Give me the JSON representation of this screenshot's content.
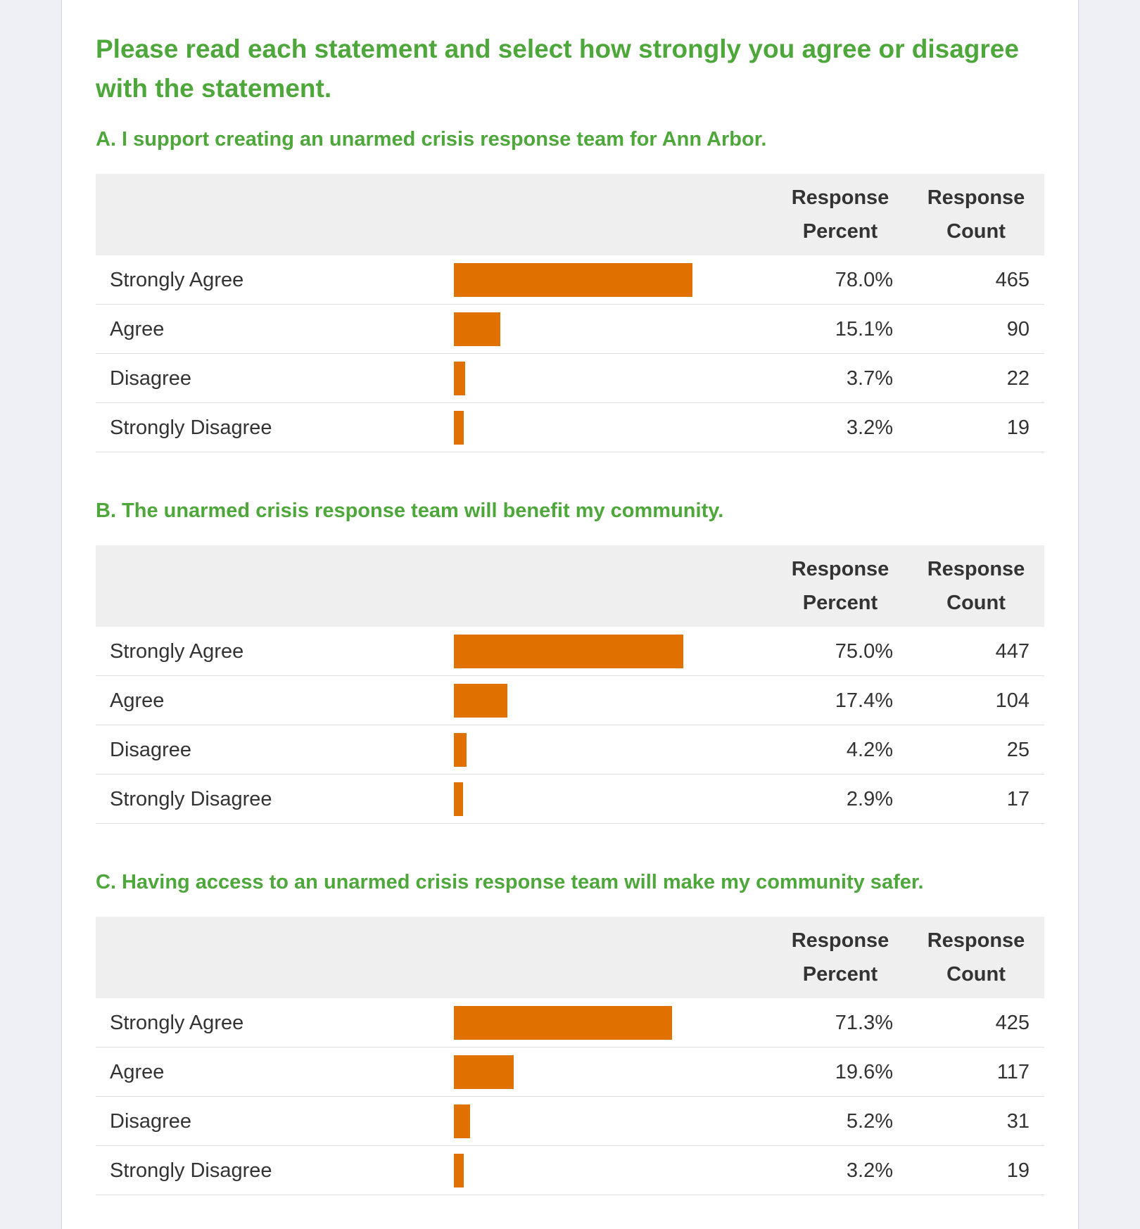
{
  "title": "Please read each statement and select how strongly you agree or disagree with the statement.",
  "sections": [
    {
      "heading": "A. I support creating an unarmed crisis response team for Ann Arbor.",
      "columns": [
        "Response Percent",
        "Response Count"
      ],
      "rows": [
        {
          "label": "Strongly Agree",
          "percent": 78.0,
          "percent_label": "78.0%",
          "count": 465
        },
        {
          "label": "Agree",
          "percent": 15.1,
          "percent_label": "15.1%",
          "count": 90
        },
        {
          "label": "Disagree",
          "percent": 3.7,
          "percent_label": "3.7%",
          "count": 22
        },
        {
          "label": "Strongly Disagree",
          "percent": 3.2,
          "percent_label": "3.2%",
          "count": 19
        }
      ]
    },
    {
      "heading": "B. The unarmed crisis response team will benefit my community.",
      "columns": [
        "Response Percent",
        "Response Count"
      ],
      "rows": [
        {
          "label": "Strongly Agree",
          "percent": 75.0,
          "percent_label": "75.0%",
          "count": 447
        },
        {
          "label": "Agree",
          "percent": 17.4,
          "percent_label": "17.4%",
          "count": 104
        },
        {
          "label": "Disagree",
          "percent": 4.2,
          "percent_label": "4.2%",
          "count": 25
        },
        {
          "label": "Strongly Disagree",
          "percent": 2.9,
          "percent_label": "2.9%",
          "count": 17
        }
      ]
    },
    {
      "heading": "C. Having access to an unarmed crisis response team will make my community safer.",
      "columns": [
        "Response Percent",
        "Response Count"
      ],
      "rows": [
        {
          "label": "Strongly Agree",
          "percent": 71.3,
          "percent_label": "71.3%",
          "count": 425
        },
        {
          "label": "Agree",
          "percent": 19.6,
          "percent_label": "19.6%",
          "count": 117
        },
        {
          "label": "Disagree",
          "percent": 5.2,
          "percent_label": "5.2%",
          "count": 31
        },
        {
          "label": "Strongly Disagree",
          "percent": 3.2,
          "percent_label": "3.2%",
          "count": 19
        }
      ]
    }
  ]
}
